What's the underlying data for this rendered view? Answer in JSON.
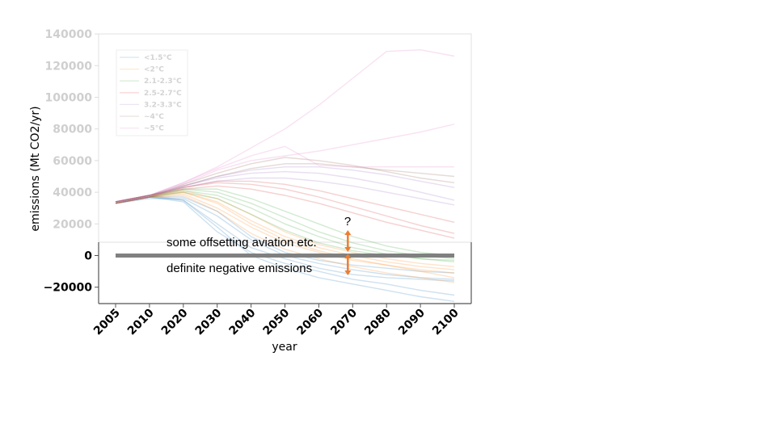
{
  "chart_data": {
    "type": "line",
    "xlabel": "year",
    "ylabel": "emissions (Mt CO2/yr)",
    "x_ticks": [
      "2005",
      "2010",
      "2020",
      "2030",
      "2040",
      "2050",
      "2060",
      "2070",
      "2080",
      "2090",
      "2100"
    ],
    "y_ticks": [
      {
        "value": 140000,
        "label": "140000",
        "faded": true
      },
      {
        "value": 120000,
        "label": "120000",
        "faded": true
      },
      {
        "value": 100000,
        "label": "100000",
        "faded": true
      },
      {
        "value": 80000,
        "label": "80000",
        "faded": true
      },
      {
        "value": 60000,
        "label": "60000",
        "faded": true
      },
      {
        "value": 40000,
        "label": "40000",
        "faded": true
      },
      {
        "value": 20000,
        "label": "20000",
        "faded": true
      },
      {
        "value": 0,
        "label": "0",
        "faded": false
      },
      {
        "value": -20000,
        "label": "−20000",
        "faded": false
      }
    ],
    "ylim": [
      -30000,
      140000
    ],
    "grid": false,
    "legend_position": "top-left",
    "legend": [
      {
        "label": "<1.5°C",
        "color": "#1f77b4"
      },
      {
        "label": "<2°C",
        "color": "#ff7f0e"
      },
      {
        "label": "2.1-2.3°C",
        "color": "#2ca02c"
      },
      {
        "label": "2.5-2.7°C",
        "color": "#d62728"
      },
      {
        "label": "3.2-3.3°C",
        "color": "#9467bd"
      },
      {
        "label": "~4°C",
        "color": "#8c564b"
      },
      {
        "label": "~5°C",
        "color": "#e377c2"
      }
    ],
    "series": [
      {
        "group": "<1.5°C",
        "values": [
          33000,
          37000,
          35000,
          20000,
          5000,
          -2000,
          -8000,
          -12000,
          -14000,
          -15000,
          -16000
        ]
      },
      {
        "group": "<1.5°C",
        "values": [
          34000,
          37000,
          34000,
          15000,
          2000,
          -5000,
          -10000,
          -15000,
          -18000,
          -22000,
          -25000
        ]
      },
      {
        "group": "<1.5°C",
        "values": [
          33000,
          36000,
          36000,
          25000,
          10000,
          0,
          -5000,
          -9000,
          -12000,
          -14000,
          -15000
        ]
      },
      {
        "group": "<1.5°C",
        "values": [
          34000,
          38000,
          35000,
          18000,
          0,
          -8000,
          -14000,
          -18000,
          -22000,
          -26000,
          -29000
        ]
      },
      {
        "group": "<1.5°C",
        "values": [
          33000,
          37000,
          37000,
          28000,
          12000,
          2000,
          -3000,
          -6000,
          -8000,
          -10000,
          -11000
        ]
      },
      {
        "group": "<2°C",
        "values": [
          33000,
          37000,
          39000,
          30000,
          18000,
          8000,
          2000,
          -3000,
          -6000,
          -9000,
          -11000
        ]
      },
      {
        "group": "<2°C",
        "values": [
          34000,
          38000,
          40000,
          34000,
          22000,
          12000,
          5000,
          0,
          -4000,
          -7000,
          -9000
        ]
      },
      {
        "group": "<2°C",
        "values": [
          33000,
          37000,
          38000,
          28000,
          14000,
          4000,
          -2000,
          -7000,
          -11000,
          -14000,
          -17000
        ]
      },
      {
        "group": "<2°C",
        "values": [
          34000,
          38000,
          41000,
          36000,
          26000,
          15000,
          7000,
          2000,
          -2000,
          -5000,
          -7000
        ]
      },
      {
        "group": "<2°C",
        "values": [
          33000,
          37000,
          40000,
          33000,
          20000,
          10000,
          3000,
          -2000,
          -6000,
          -10000,
          -14000
        ]
      },
      {
        "group": "2.1-2.3°C",
        "values": [
          34000,
          38000,
          42000,
          40000,
          33000,
          24000,
          15000,
          8000,
          3000,
          0,
          -2000
        ]
      },
      {
        "group": "2.1-2.3°C",
        "values": [
          33000,
          37000,
          41000,
          38000,
          30000,
          20000,
          12000,
          5000,
          1000,
          -2000,
          -4000
        ]
      },
      {
        "group": "2.1-2.3°C",
        "values": [
          34000,
          38000,
          42000,
          42000,
          36000,
          28000,
          20000,
          12000,
          6000,
          2000,
          0
        ]
      },
      {
        "group": "2.1-2.3°C",
        "values": [
          33000,
          37000,
          40000,
          36000,
          26000,
          16000,
          8000,
          3000,
          0,
          -2000,
          -3000
        ]
      },
      {
        "group": "2.5-2.7°C",
        "values": [
          34000,
          38000,
          43000,
          46000,
          45000,
          42000,
          37000,
          31000,
          25000,
          19000,
          14000
        ]
      },
      {
        "group": "2.5-2.7°C",
        "values": [
          33000,
          37000,
          42000,
          44000,
          42000,
          38000,
          33000,
          27000,
          21000,
          16000,
          11000
        ]
      },
      {
        "group": "2.5-2.7°C",
        "values": [
          34000,
          38000,
          43000,
          47000,
          47000,
          45000,
          41000,
          36000,
          31000,
          26000,
          21000
        ]
      },
      {
        "group": "3.2-3.3°C",
        "values": [
          34000,
          38000,
          44000,
          49000,
          52000,
          53000,
          52000,
          49000,
          45000,
          40000,
          35000
        ]
      },
      {
        "group": "3.2-3.3°C",
        "values": [
          33000,
          37000,
          43000,
          47000,
          49000,
          49000,
          47000,
          44000,
          40000,
          36000,
          32000
        ]
      },
      {
        "group": "3.2-3.3°C",
        "values": [
          34000,
          38000,
          44000,
          50000,
          54000,
          56000,
          56000,
          54000,
          51000,
          47000,
          43000
        ]
      },
      {
        "group": "~4°C",
        "values": [
          34000,
          38000,
          45000,
          52000,
          58000,
          62000,
          60000,
          57000,
          53000,
          49000,
          46000
        ]
      },
      {
        "group": "~4°C",
        "values": [
          33000,
          37000,
          44000,
          50000,
          55000,
          58000,
          58000,
          56000,
          54000,
          52000,
          50000
        ]
      },
      {
        "group": "~5°C",
        "values": [
          34000,
          38000,
          46000,
          55000,
          63000,
          69000,
          57000,
          56000,
          56000,
          56000,
          56000
        ]
      },
      {
        "group": "~5°C",
        "values": [
          33000,
          37000,
          45000,
          54000,
          60000,
          63000,
          66000,
          70000,
          74000,
          78000,
          83000
        ]
      },
      {
        "group": "~5°C",
        "values": [
          34000,
          38000,
          46000,
          56000,
          68000,
          80000,
          95000,
          112000,
          129000,
          130000,
          126000
        ]
      }
    ],
    "zero_line": {
      "value": 0,
      "from": "2005",
      "to": "2100",
      "color": "#808080"
    },
    "annotations": {
      "question": "?",
      "upper": "some offsetting aviation etc.",
      "lower": "definite negative emissions",
      "arrow_x": "2070",
      "arrow_color": "#ed7d31"
    }
  }
}
